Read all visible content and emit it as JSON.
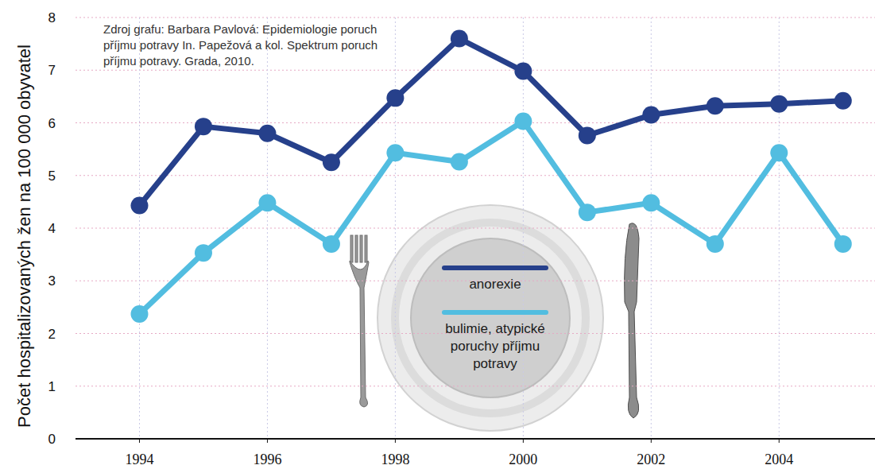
{
  "chart_data": {
    "type": "line",
    "annotations": [
      "Zdroj grafu: Barbara Pavlová: Epidemiologie poruch příjmu potravy In. Papežová a kol. Spektrum poruch příjmu potravy. Grada, 2010."
    ],
    "ylabel": "Počet hospitalizovaných žen na 100 000 obyvatel",
    "x": [
      1994,
      1995,
      1996,
      1997,
      1998,
      1999,
      2000,
      2001,
      2002,
      2003,
      2004,
      2005
    ],
    "series": [
      {
        "name": "anorexie",
        "color": "#26408b",
        "values": [
          4.43,
          5.93,
          5.8,
          5.25,
          6.47,
          7.6,
          6.98,
          5.76,
          6.15,
          6.32,
          6.36,
          6.42
        ]
      },
      {
        "name": "bulimie, atypické poruchy příjmu potravy",
        "color": "#52bde0",
        "values": [
          2.37,
          3.53,
          4.48,
          3.7,
          5.43,
          5.26,
          6.03,
          4.3,
          4.48,
          3.7,
          5.43,
          3.7
        ]
      }
    ],
    "xlim": [
      1993,
      2005.5
    ],
    "xticks": [
      1994,
      1996,
      1998,
      2000,
      2002,
      2004
    ],
    "ylim": [
      0,
      8
    ],
    "yticks": [
      0,
      1,
      2,
      3,
      4,
      5,
      6,
      7,
      8
    ],
    "grid": true,
    "legend": "center",
    "marker": "circle"
  }
}
